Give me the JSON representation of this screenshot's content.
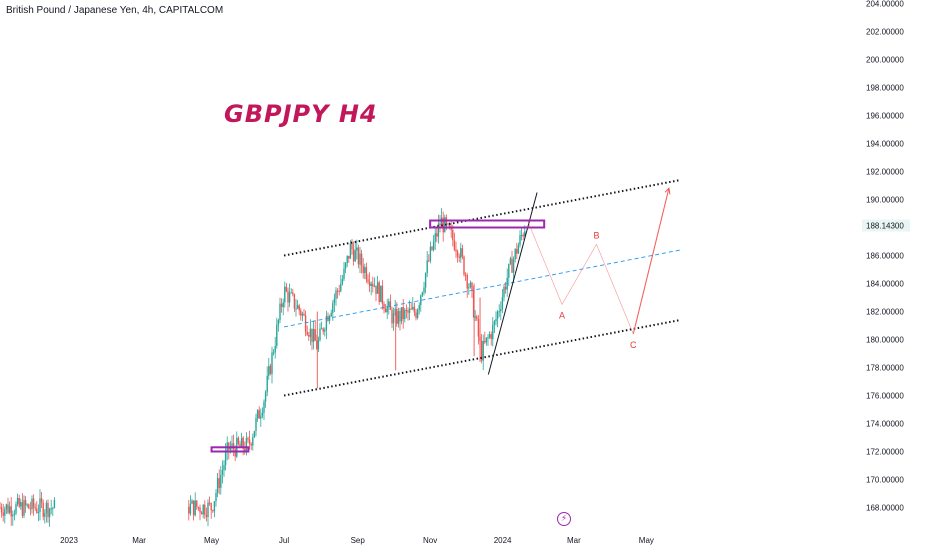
{
  "header": {
    "symbol_line": "British Pound / Japanese Yen, 4h, CAPITALCOM",
    "chart_title": "GBPJPY H4"
  },
  "icons": {
    "flash_icon": "⚡"
  },
  "colors": {
    "up_candle": "#26a69a",
    "down_candle": "#ef5350",
    "channel": "#131722",
    "midline": "#2196f3",
    "resistance_box": "#9c27b0",
    "projection": "#ef5350",
    "title": "#c2185b"
  },
  "chart_data": {
    "type": "candlestick",
    "title": "British Pound / Japanese Yen, 4h, CAPITALCOM",
    "annotation": "GBPJPY H4",
    "x_ticks": [
      "2023",
      "Mar",
      "May",
      "Jul",
      "Sep",
      "Nov",
      "2024",
      "Mar",
      "May"
    ],
    "y_ticks": [
      "204.00000",
      "202.00000",
      "200.00000",
      "198.00000",
      "196.00000",
      "194.00000",
      "192.00000",
      "190.00000",
      "188.14300",
      "186.00000",
      "184.00000",
      "182.00000",
      "180.00000",
      "178.00000",
      "176.00000",
      "174.00000",
      "172.00000",
      "170.00000",
      "168.00000"
    ],
    "ylim": [
      166.5,
      204.3
    ],
    "last_price": 188.143,
    "price_path": [
      {
        "date": "2023-01-01",
        "close": 168.0
      },
      {
        "date": "2023-01-15",
        "close": 169.3
      },
      {
        "date": "2023-02-01",
        "close": 168.2
      },
      {
        "date": "2023-05-01",
        "close": 168.0
      },
      {
        "date": "2023-05-15",
        "close": 172.2
      },
      {
        "date": "2023-06-01",
        "close": 172.4
      },
      {
        "date": "2023-06-15",
        "close": 176.0
      },
      {
        "date": "2023-07-01",
        "close": 183.5
      },
      {
        "date": "2023-07-15",
        "close": 182.0
      },
      {
        "date": "2023-07-29",
        "close": 179.5
      },
      {
        "date": "2023-08-05",
        "close": 181.5
      },
      {
        "date": "2023-08-20",
        "close": 184.5
      },
      {
        "date": "2023-08-26",
        "close": 186.6
      },
      {
        "date": "2023-09-15",
        "close": 184.0
      },
      {
        "date": "2023-10-01",
        "close": 181.5
      },
      {
        "date": "2023-10-20",
        "close": 182.0
      },
      {
        "date": "2023-11-01",
        "close": 186.0
      },
      {
        "date": "2023-11-10",
        "close": 188.5
      },
      {
        "date": "2023-11-25",
        "close": 186.5
      },
      {
        "date": "2023-12-05",
        "close": 183.5
      },
      {
        "date": "2023-12-14",
        "close": 179.0
      },
      {
        "date": "2023-12-25",
        "close": 181.0
      },
      {
        "date": "2024-01-05",
        "close": 184.5
      },
      {
        "date": "2024-01-20",
        "close": 188.143
      }
    ],
    "channel": {
      "upper": [
        {
          "date": "2023-07-01",
          "y": 186.0
        },
        {
          "date": "2024-05-30",
          "y": 191.4
        }
      ],
      "middle": [
        {
          "date": "2023-07-01",
          "y": 180.9
        },
        {
          "date": "2024-05-30",
          "y": 186.4
        }
      ],
      "lower": [
        {
          "date": "2023-07-01",
          "y": 176.0
        },
        {
          "date": "2024-05-30",
          "y": 181.4
        }
      ]
    },
    "trendline": [
      {
        "date": "2023-12-20",
        "y": 177.5
      },
      {
        "date": "2024-01-30",
        "y": 190.5
      }
    ],
    "resistance_zones": [
      {
        "from": "2023-11-01",
        "to": "2024-02-05",
        "low": 188.0,
        "high": 188.5
      },
      {
        "from": "2023-05-01",
        "to": "2023-06-01",
        "low": 172.0,
        "high": 172.3
      }
    ],
    "projection": [
      {
        "date": "2024-01-22",
        "y": 188.5
      },
      {
        "date": "2024-02-20",
        "y": 182.5,
        "label": "A"
      },
      {
        "date": "2024-03-20",
        "y": 186.8,
        "label": "B"
      },
      {
        "date": "2024-04-20",
        "y": 180.4,
        "label": "C"
      },
      {
        "date": "2024-05-20",
        "y": 190.8
      }
    ]
  }
}
